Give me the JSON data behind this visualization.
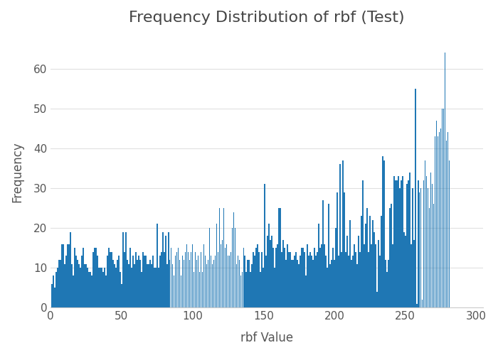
{
  "title": "Frequency Distribution of rbf (Test)",
  "xlabel": "rbf Value",
  "ylabel": "Frequency",
  "bar_color": "#1f77b4",
  "background_color": "#ffffff",
  "plot_bg_color": "#ffffff",
  "grid_color": "#e0e0e0",
  "bar_values": [
    6,
    8,
    5,
    9,
    10,
    12,
    12,
    16,
    16,
    11,
    13,
    16,
    16,
    19,
    11,
    8,
    15,
    13,
    12,
    11,
    10,
    13,
    15,
    11,
    11,
    10,
    9,
    9,
    8,
    14,
    15,
    15,
    13,
    10,
    10,
    10,
    9,
    10,
    8,
    13,
    15,
    14,
    14,
    12,
    11,
    10,
    12,
    13,
    9,
    6,
    19,
    14,
    19,
    12,
    11,
    15,
    10,
    13,
    11,
    14,
    12,
    13,
    12,
    9,
    14,
    13,
    13,
    11,
    11,
    12,
    11,
    13,
    10,
    10,
    21,
    10,
    13,
    14,
    19,
    14,
    18,
    11,
    19,
    12,
    15,
    11,
    8,
    13,
    14,
    15,
    12,
    8,
    13,
    12,
    14,
    16,
    14,
    12,
    14,
    16,
    9,
    14,
    12,
    13,
    9,
    14,
    9,
    16,
    13,
    11,
    12,
    20,
    13,
    11,
    12,
    13,
    21,
    14,
    25,
    16,
    17,
    25,
    15,
    16,
    13,
    13,
    14,
    20,
    24,
    20,
    11,
    13,
    12,
    8,
    9,
    15,
    13,
    9,
    12,
    12,
    9,
    11,
    14,
    13,
    15,
    16,
    14,
    9,
    14,
    10,
    31,
    13,
    18,
    21,
    17,
    18,
    15,
    10,
    15,
    16,
    25,
    25,
    14,
    17,
    15,
    12,
    16,
    14,
    14,
    12,
    12,
    13,
    14,
    12,
    11,
    13,
    15,
    15,
    14,
    8,
    16,
    13,
    14,
    13,
    12,
    15,
    13,
    14,
    21,
    15,
    16,
    27,
    16,
    13,
    10,
    26,
    11,
    12,
    15,
    12,
    20,
    29,
    13,
    36,
    14,
    37,
    29,
    14,
    18,
    13,
    22,
    12,
    13,
    16,
    14,
    11,
    18,
    14,
    23,
    32,
    16,
    21,
    25,
    14,
    23,
    16,
    22,
    19,
    16,
    4,
    17,
    13,
    23,
    38,
    37,
    12,
    9,
    12,
    25,
    26,
    16,
    33,
    32,
    32,
    33,
    30,
    32,
    33,
    19,
    18,
    31,
    32,
    34,
    16,
    30,
    17,
    55,
    1,
    32,
    29,
    30,
    2,
    32,
    37,
    33,
    30,
    25,
    34,
    31,
    26,
    43,
    47,
    43,
    44,
    45,
    50,
    50,
    64,
    42,
    44,
    37
  ],
  "xlim": [
    0,
    305
  ],
  "ylim": [
    0,
    68
  ],
  "yticks": [
    0,
    10,
    20,
    30,
    40,
    50,
    60
  ],
  "xticks": [
    0,
    50,
    100,
    150,
    200,
    250,
    300
  ],
  "title_fontsize": 16,
  "label_fontsize": 12,
  "tick_fontsize": 11
}
